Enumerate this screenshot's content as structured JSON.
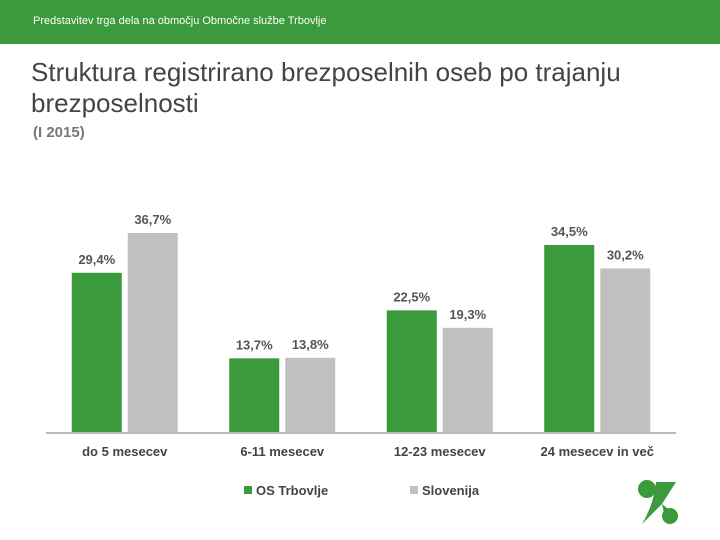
{
  "header": {
    "bar_text": "Predstavitev trga dela na območju Območne službe Trbovlje"
  },
  "slide": {
    "title": "Struktura registrirano brezposelnih oseb po trajanju brezposelnosti",
    "subtitle": "(I 2015)"
  },
  "colors": {
    "header_bg": "#3a9a3c",
    "os_trbovlje": "#3a9a3c",
    "slovenija": "#c0c0c0"
  },
  "chart_data": {
    "type": "bar",
    "title": "",
    "xlabel": "",
    "ylabel": "",
    "ylim": [
      0,
      40
    ],
    "grid": false,
    "legend_position": "bottom",
    "categories": [
      "do 5 mesecev",
      "6-11 mesecev",
      "12-23 mesecev",
      "24 mesecev in več"
    ],
    "series": [
      {
        "name": "OS Trbovlje",
        "color": "#3a9a3c",
        "values": [
          29.4,
          13.7,
          22.5,
          34.5
        ],
        "labels": [
          "29,4%",
          "13,7%",
          "22,5%",
          "34,5%"
        ]
      },
      {
        "name": "Slovenija",
        "color": "#c0c0c0",
        "values": [
          36.7,
          13.8,
          19.3,
          30.2
        ],
        "labels": [
          "36,7%",
          "13,8%",
          "19,3%",
          "30,2%"
        ]
      }
    ]
  },
  "logo": {
    "icon": "zavod-logo-icon"
  }
}
